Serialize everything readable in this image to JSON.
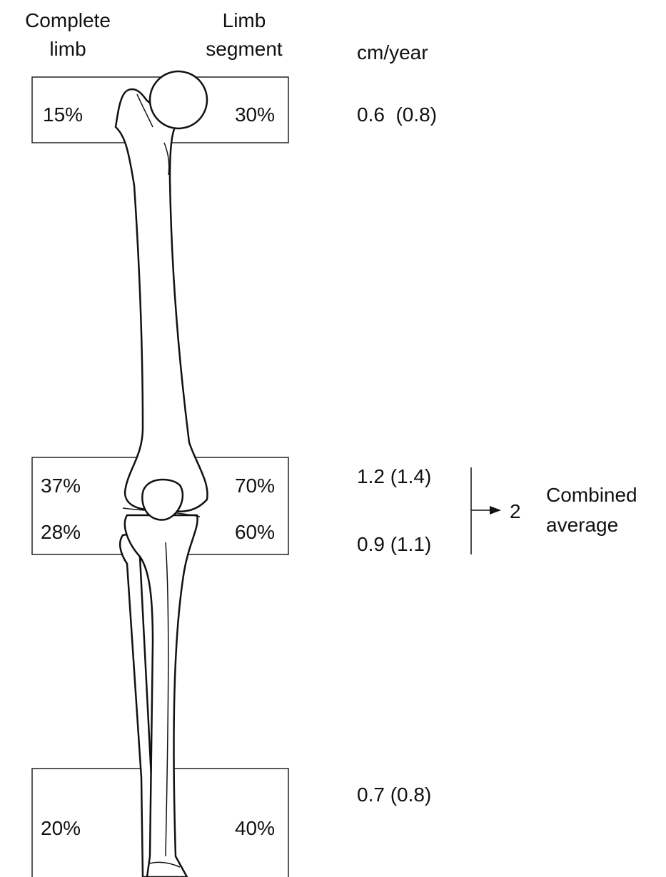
{
  "headers": {
    "complete_limb": [
      "Complete",
      "limb"
    ],
    "limb_segment": [
      "Limb",
      "segment"
    ],
    "rate_unit": "cm/year"
  },
  "regions": [
    {
      "name_region": "proximal femur",
      "complete_limb": "15%",
      "limb_segment": "30%",
      "rate": "0.6  (0.8)"
    },
    {
      "name_region": "distal femur",
      "complete_limb": "37%",
      "limb_segment": "70%",
      "rate": "1.2 (1.4)"
    },
    {
      "name_region": "proximal tibia",
      "complete_limb": "28%",
      "limb_segment": "60%",
      "rate": "0.9 (1.1)"
    },
    {
      "name_region": "distal tibia",
      "complete_limb": "20%",
      "limb_segment": "40%",
      "rate": "0.7 (0.8)"
    }
  ],
  "combined": {
    "value": "2",
    "label": [
      "Combined",
      "average"
    ]
  }
}
